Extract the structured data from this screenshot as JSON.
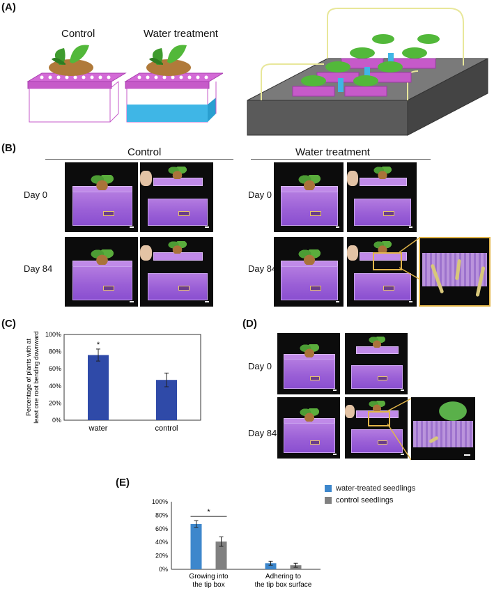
{
  "panels": {
    "A": "(A)",
    "B": "(B)",
    "C": "(C)",
    "D": "(D)",
    "E": "(E)"
  },
  "panelA": {
    "control_label": "Control",
    "water_label": "Water treatment"
  },
  "panelB": {
    "control_header": "Control",
    "water_header": "Water treatment",
    "day0": "Day 0",
    "day84": "Day 84"
  },
  "panelD": {
    "day0": "Day 0",
    "day84": "Day 84"
  },
  "colors": {
    "chartC_bar": "#2f4aa8",
    "water_bar": "#3d87cc",
    "control_bar": "#808080",
    "tip_box": "#9a5fd6",
    "highlight_frame": "#e2b64a"
  },
  "chart_data": [
    {
      "type": "bar",
      "panel": "C",
      "categories": [
        "water",
        "control"
      ],
      "values": [
        76,
        47
      ],
      "errors": [
        7,
        8
      ],
      "ylabel": "Percentage of plants with at least one root bending downward",
      "ylabel_lines": [
        "Percentage of plants with at",
        "least one root bending downward"
      ],
      "ylim": [
        0,
        100
      ],
      "yticks": [
        "0%",
        "20%",
        "40%",
        "60%",
        "80%",
        "100%"
      ],
      "annotation": "*",
      "grid": false
    },
    {
      "type": "bar",
      "panel": "E",
      "categories": [
        "Growing into the tip box",
        "Adhering to the tip box surface"
      ],
      "category_lines": [
        [
          "Growing into",
          "the tip box"
        ],
        [
          "Adhering to",
          "the tip box surface"
        ]
      ],
      "series": [
        {
          "name": "water-treated seedlings",
          "values": [
            67,
            9
          ],
          "errors": [
            5,
            3
          ]
        },
        {
          "name": "control seedlings",
          "values": [
            41,
            6
          ],
          "errors": [
            7,
            3
          ]
        }
      ],
      "ylim": [
        0,
        100
      ],
      "yticks": [
        "0%",
        "20%",
        "40%",
        "60%",
        "80%",
        "100%"
      ],
      "annotation": "*",
      "legend": "right",
      "grid": false
    }
  ]
}
